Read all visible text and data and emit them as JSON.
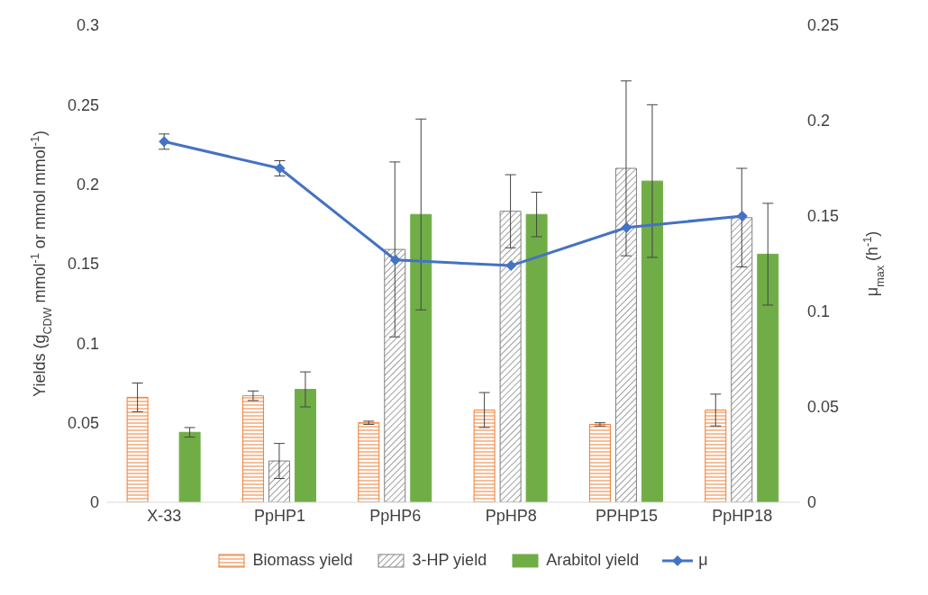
{
  "chart_data": {
    "type": "bar",
    "categories": [
      "X-33",
      "PpHP1",
      "PpHP6",
      "PpHP8",
      "PPHP15",
      "PpHP18"
    ],
    "ylabel": "Yields (g$_{CDW}$ mmol$^{-1}$ or mmol mmol$^{-1}$)",
    "y2label": "μ$_{max}$ (h$^{-1}$)",
    "ylim": [
      0,
      0.3
    ],
    "yticks": [
      0,
      0.05,
      0.1,
      0.15,
      0.2,
      0.25,
      0.3
    ],
    "y2lim": [
      0,
      0.25
    ],
    "y2ticks": [
      0,
      0.05,
      0.1,
      0.15,
      0.2,
      0.25
    ],
    "legend": "bottom",
    "grid": false,
    "series": [
      {
        "name": "Biomass yield",
        "color": "#ed7d31",
        "values": [
          0.066,
          0.067,
          0.05,
          0.058,
          0.049,
          0.058
        ],
        "errors": [
          0.009,
          0.003,
          0.001,
          0.011,
          0.001,
          0.01
        ]
      },
      {
        "name": "3-HP yield",
        "color": "#7f7f7f",
        "values": [
          null,
          0.026,
          0.159,
          0.183,
          0.21,
          0.179
        ],
        "errors": [
          null,
          0.011,
          0.055,
          0.023,
          0.055,
          0.031
        ]
      },
      {
        "name": "Arabitol yield",
        "color": "#70ad47",
        "values": [
          0.044,
          0.071,
          0.181,
          0.181,
          0.202,
          0.156
        ],
        "errors": [
          0.003,
          0.011,
          0.06,
          0.014,
          0.048,
          0.032
        ]
      },
      {
        "name": "μ",
        "type": "line",
        "axis": "y2",
        "color": "#4472c4",
        "marker": "diamond",
        "values": [
          0.189,
          0.175,
          0.127,
          0.124,
          0.144,
          0.15
        ],
        "errors": [
          0.004,
          0.004,
          null,
          null,
          null,
          null
        ]
      }
    ]
  }
}
